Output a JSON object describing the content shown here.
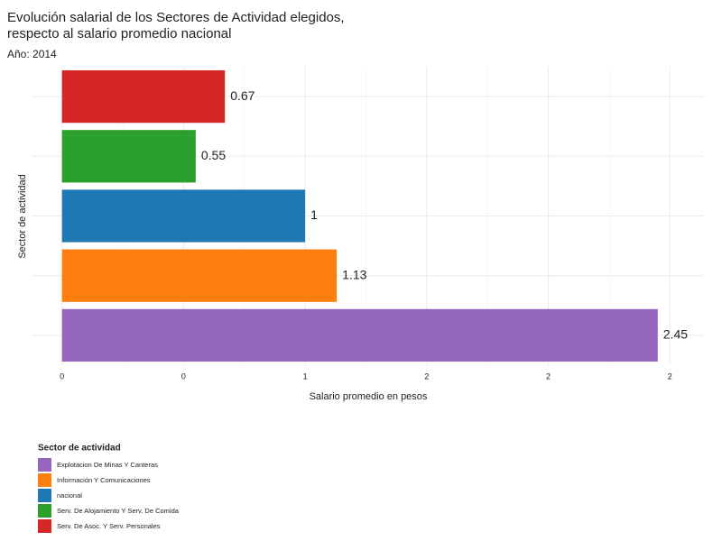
{
  "chart_data": {
    "type": "bar",
    "orientation": "horizontal",
    "title": [
      "Evolución salarial de los Sectores de Actividad elegidos,",
      "respecto al salario promedio nacional"
    ],
    "subtitle": "Año: 2014",
    "x_label": "Salario promedio en pesos",
    "y_label": "Sector de actividad",
    "legend_title": "Sector de actividad",
    "categories": [
      "Explotacion De Minas Y Canteras",
      "Información Y Comunicaciones",
      "nacional",
      "Serv. De Alojamiento Y Serv. De Comida",
      "Serv. De Asoc. Y Serv. Personales"
    ],
    "values": [
      2.45,
      1.13,
      1,
      0.55,
      0.67
    ],
    "colors": [
      "#9467bd",
      "#ff7f0e",
      "#1f77b4",
      "#2ca02c",
      "#d62728"
    ],
    "xlim": [
      -0.125,
      2.64
    ],
    "xticks": [
      0,
      {
        "value": 0.5,
        "label": "0"
      },
      1,
      {
        "value": 1.5,
        "label": "2"
      },
      2,
      {
        "value": 2.5,
        "label": "2"
      }
    ],
    "grid": true
  }
}
